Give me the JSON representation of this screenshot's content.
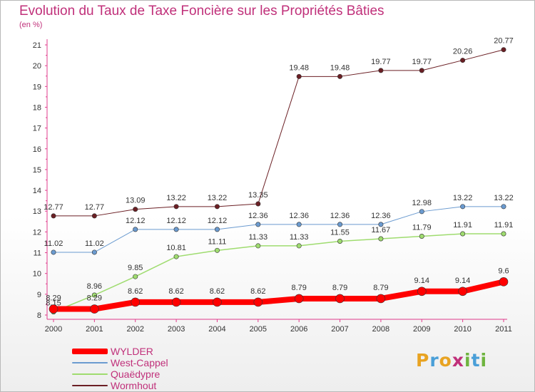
{
  "header": {
    "title": "Evolution du Taux de Taxe Foncière sur les Propriétés Bâties",
    "subtitle": "(en %)"
  },
  "logo": {
    "letters": [
      {
        "ch": "P",
        "color": "#e8a322"
      },
      {
        "ch": "r",
        "color": "#4a9fd8"
      },
      {
        "ch": "o",
        "color": "#e8a322"
      },
      {
        "ch": "x",
        "color": "#c0307a"
      },
      {
        "ch": "i",
        "color": "#6fb43f"
      },
      {
        "ch": "t",
        "color": "#4a9fd8"
      },
      {
        "ch": "i",
        "color": "#6fb43f"
      }
    ]
  },
  "chart_data": {
    "type": "line",
    "title": "Evolution du Taux de Taxe Foncière sur les Propriétés Bâties",
    "ylabel": "(en %)",
    "xlabel": "",
    "x": [
      "2000",
      "2001",
      "2002",
      "2003",
      "2004",
      "2005",
      "2006",
      "2007",
      "2008",
      "2009",
      "2010",
      "2011"
    ],
    "ylim": [
      8,
      21
    ],
    "yticks": [
      8,
      9,
      10,
      11,
      12,
      13,
      14,
      15,
      16,
      17,
      18,
      19,
      20,
      21
    ],
    "grid": false,
    "legend_position": "bottom-left",
    "series": [
      {
        "name": "Wormhout",
        "color": "#6b1f24",
        "width": 1,
        "values": [
          12.77,
          12.77,
          13.09,
          13.22,
          13.22,
          13.35,
          19.48,
          19.48,
          19.77,
          19.77,
          20.26,
          20.77
        ],
        "labels": [
          "12.77",
          "12.77",
          "13.09",
          "13.22",
          "13.22",
          "13.35",
          "19.48",
          "19.48",
          "19.77",
          "19.77",
          "20.26",
          "20.77"
        ]
      },
      {
        "name": "West-Cappel",
        "color": "#6b9bd0",
        "width": 1,
        "values": [
          11.02,
          11.02,
          12.12,
          12.12,
          12.12,
          12.36,
          12.36,
          12.36,
          12.36,
          12.98,
          13.22,
          13.22
        ],
        "labels": [
          "11.02",
          "11.02",
          "12.12",
          "12.12",
          "12.12",
          "12.36",
          "12.36",
          "12.36",
          "12.36",
          "12.98",
          "13.22",
          "13.22"
        ]
      },
      {
        "name": "Quaëdypre",
        "color": "#9fdc6f",
        "width": 1.5,
        "values": [
          8.15,
          8.96,
          9.85,
          10.81,
          11.11,
          11.33,
          11.33,
          11.55,
          11.67,
          11.79,
          11.91,
          11.91
        ],
        "labels": [
          "8.15",
          "8.96",
          "9.85",
          "10.81",
          "11.11",
          "11.33",
          "11.33",
          "11.55",
          "11.67",
          "11.79",
          "11.91",
          "11.91"
        ]
      },
      {
        "name": "WYLDER",
        "color": "#ff0000",
        "width": 8,
        "values": [
          8.29,
          8.29,
          8.62,
          8.62,
          8.62,
          8.62,
          8.79,
          8.79,
          8.79,
          9.14,
          9.14,
          9.6
        ],
        "labels": [
          "8.29",
          "8.29",
          "8.62",
          "8.62",
          "8.62",
          "8.62",
          "8.79",
          "8.79",
          "8.79",
          "9.14",
          "9.14",
          "9.6"
        ]
      }
    ],
    "legend": [
      {
        "name": "WYLDER",
        "color": "#ff0000"
      },
      {
        "name": "West-Cappel",
        "color": "#6b9bd0"
      },
      {
        "name": "Quaëdypre",
        "color": "#9fdc6f"
      },
      {
        "name": "Wormhout",
        "color": "#6b1f24"
      }
    ]
  }
}
